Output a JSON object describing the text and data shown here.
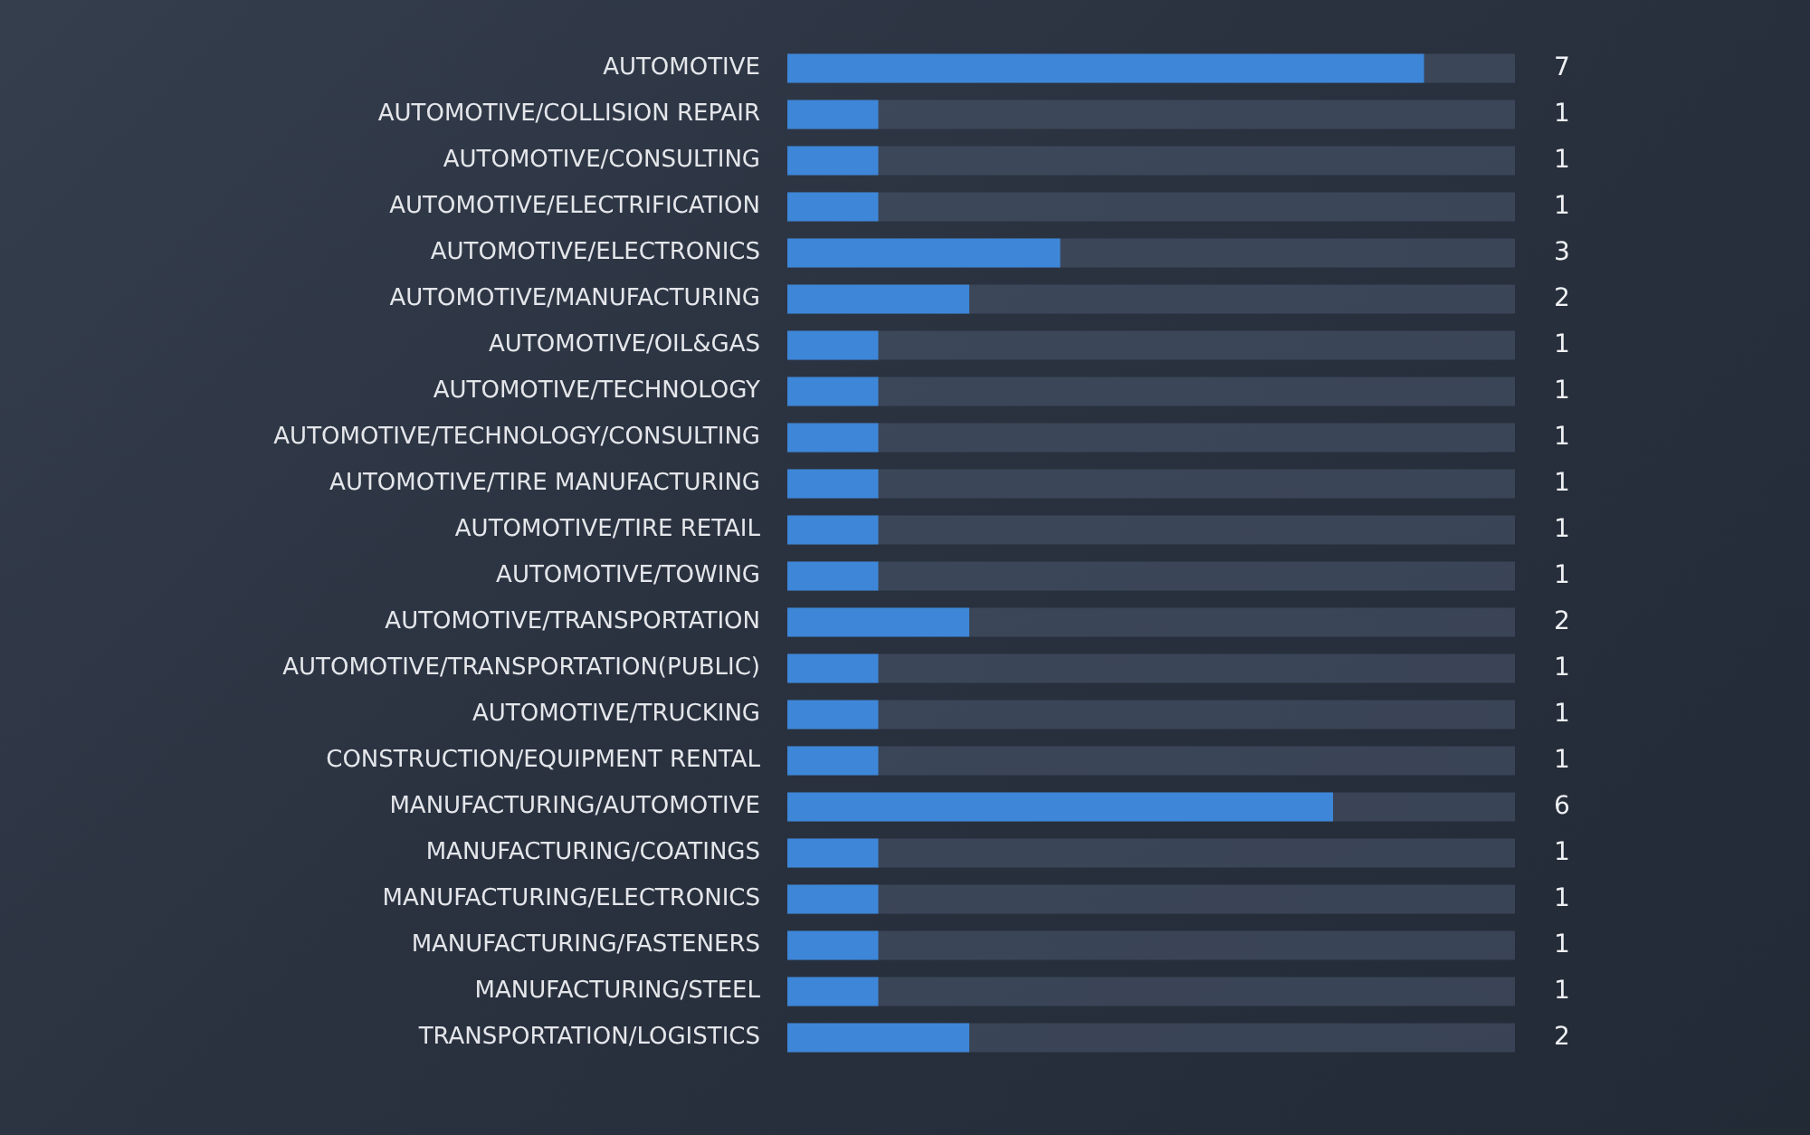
{
  "chart_data": {
    "type": "bar",
    "orientation": "horizontal",
    "categories": [
      "AUTOMOTIVE",
      "AUTOMOTIVE/COLLISION REPAIR",
      "AUTOMOTIVE/CONSULTING",
      "AUTOMOTIVE/ELECTRIFICATION",
      "AUTOMOTIVE/ELECTRONICS",
      "AUTOMOTIVE/MANUFACTURING",
      "AUTOMOTIVE/OIL&GAS",
      "AUTOMOTIVE/TECHNOLOGY",
      "AUTOMOTIVE/TECHNOLOGY/CONSULTING",
      "AUTOMOTIVE/TIRE MANUFACTURING",
      "AUTOMOTIVE/TIRE RETAIL",
      "AUTOMOTIVE/TOWING",
      "AUTOMOTIVE/TRANSPORTATION",
      "AUTOMOTIVE/TRANSPORTATION(PUBLIC)",
      "AUTOMOTIVE/TRUCKING",
      "CONSTRUCTION/EQUIPMENT RENTAL",
      "MANUFACTURING/AUTOMOTIVE",
      "MANUFACTURING/COATINGS",
      "MANUFACTURING/ELECTRONICS",
      "MANUFACTURING/FASTENERS",
      "MANUFACTURING/STEEL",
      "TRANSPORTATION/LOGISTICS"
    ],
    "values": [
      7,
      1,
      1,
      1,
      3,
      2,
      1,
      1,
      1,
      1,
      1,
      1,
      2,
      1,
      1,
      1,
      6,
      1,
      1,
      1,
      1,
      2
    ],
    "color": "#3d86d8",
    "xlim": [
      0,
      8
    ],
    "data_labels": true,
    "grid": false,
    "legend": false,
    "tick_labels": "y"
  }
}
